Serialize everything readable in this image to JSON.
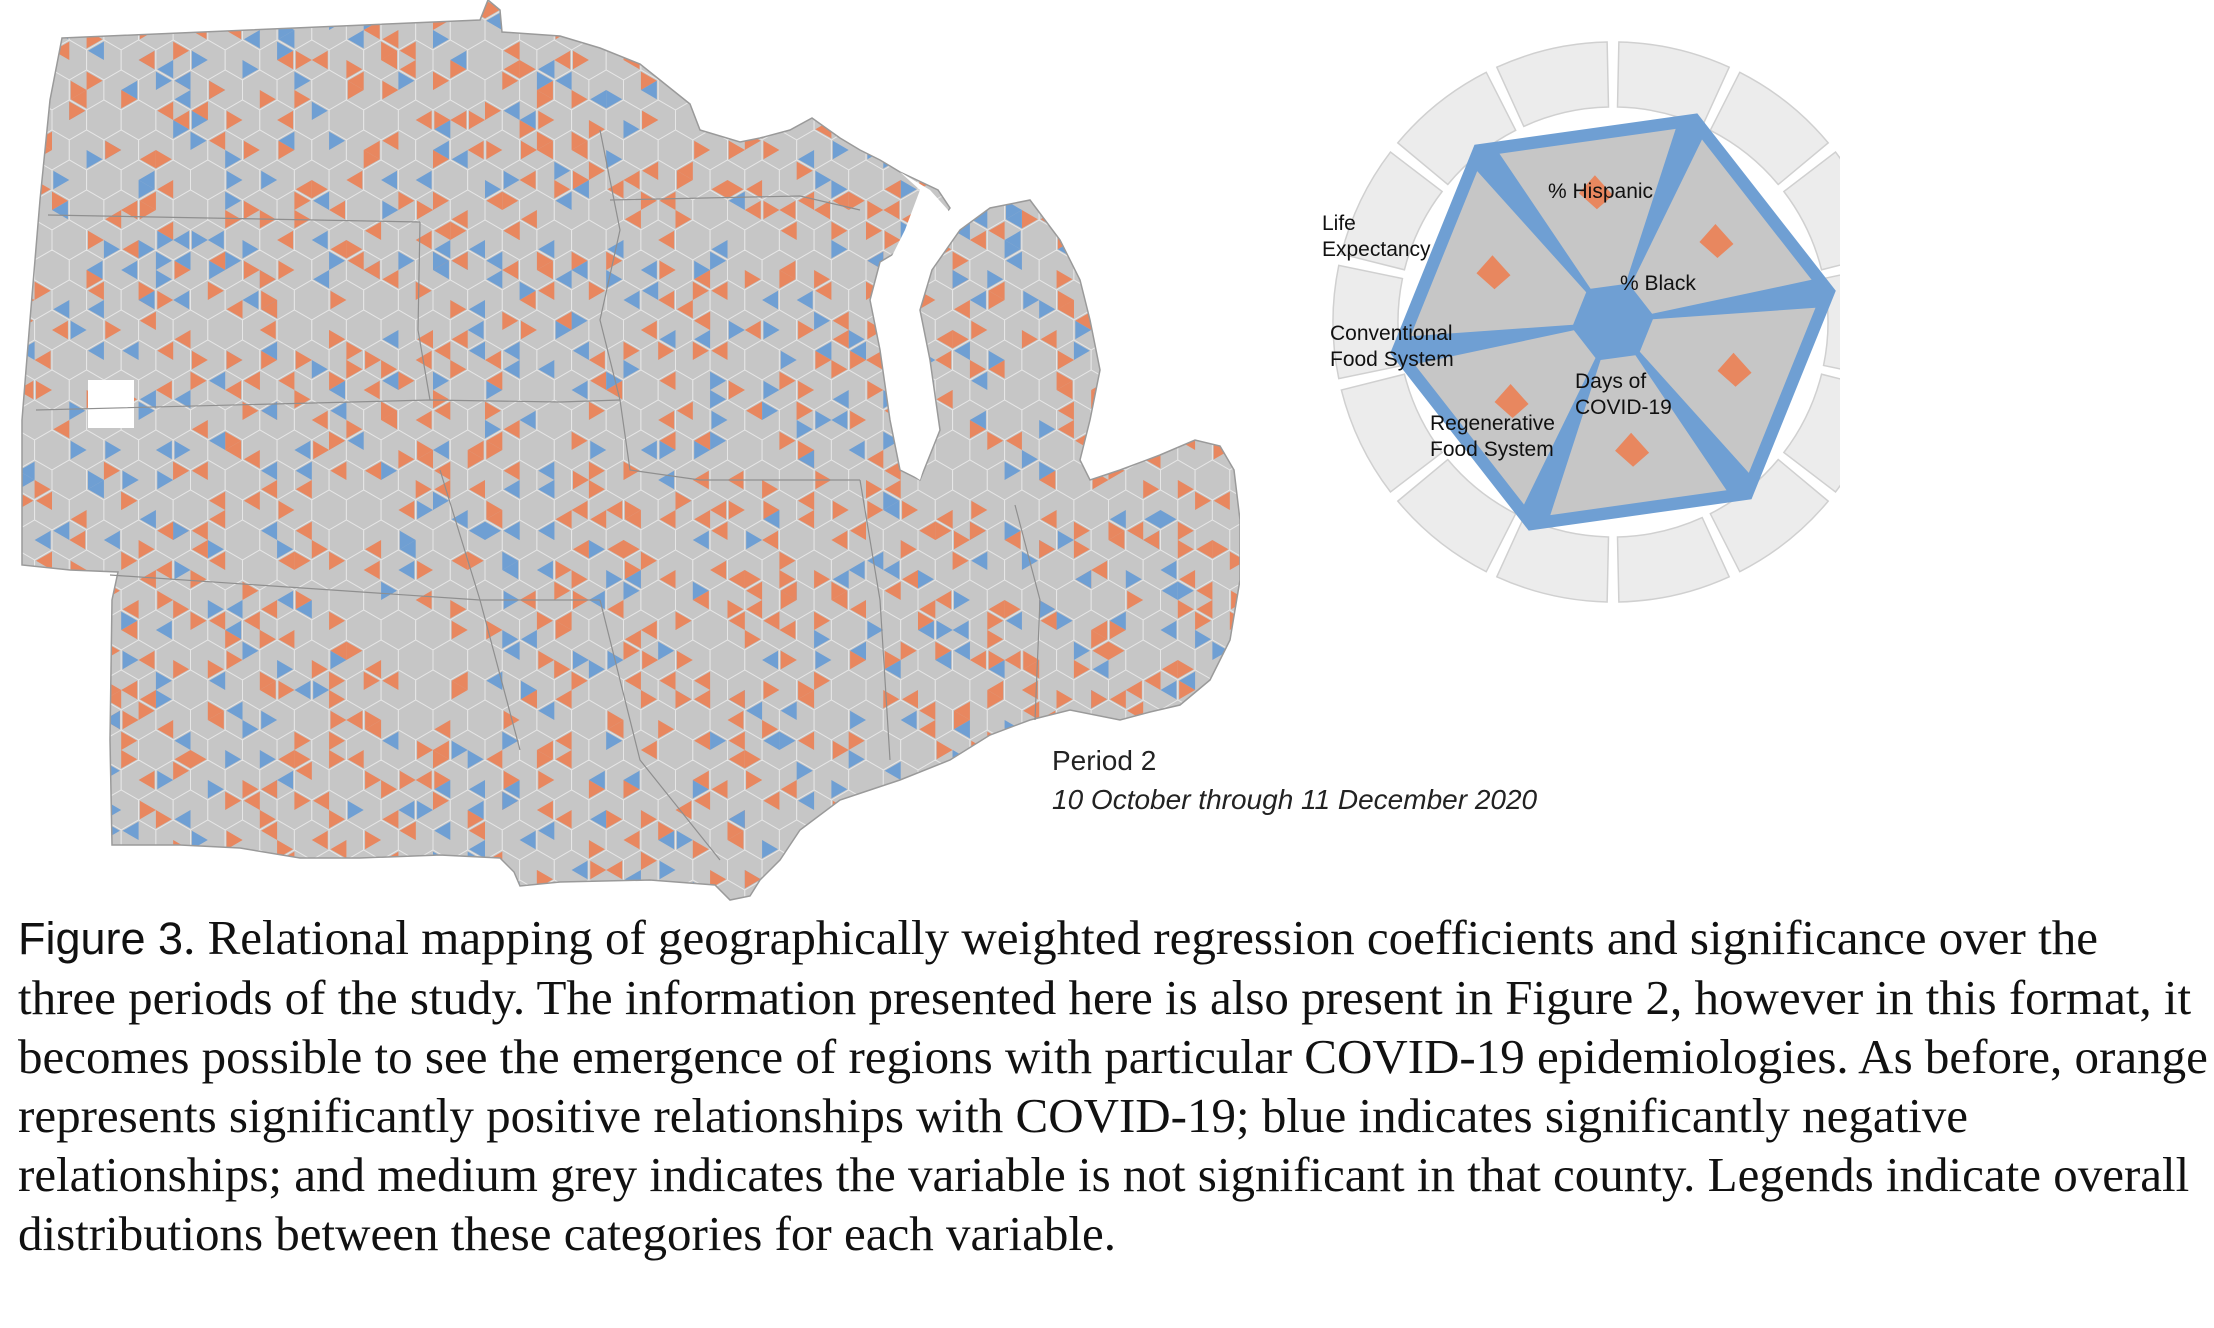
{
  "colors": {
    "positive": "#e8875f",
    "negative": "#6f9fd3",
    "not_significant": "#c6c6c6",
    "legend_ring": "#ececec",
    "legend_frame": "#6f9fd3"
  },
  "legend": {
    "variables": [
      {
        "label_lines": [
          "% Hispanic"
        ]
      },
      {
        "label_lines": [
          "% Black"
        ]
      },
      {
        "label_lines": [
          "Days of",
          "COVID-19"
        ]
      },
      {
        "label_lines": [
          "Regenerative",
          "Food System"
        ]
      },
      {
        "label_lines": [
          "Conventional",
          "Food System"
        ]
      },
      {
        "label_lines": [
          "Life",
          "Expectancy"
        ]
      }
    ]
  },
  "period": {
    "title": "Period 2",
    "range": "10 October through 11 December 2020"
  },
  "caption": {
    "label": "Figure 3",
    "text": ". Relational mapping of geographically weighted regression coefficients and significance over the three periods of the study. The information presented here is also present in Figure 2, however in this format, it becomes possible to see the emergence of regions with particular COVID-19 epidemiologies. As before, orange represents significantly positive relationships with COVID-19; blue indicates significantly negative relationships; and medium grey indicates the variable is not significant in that county. Legends indicate overall distributions between these categories for each variable."
  }
}
